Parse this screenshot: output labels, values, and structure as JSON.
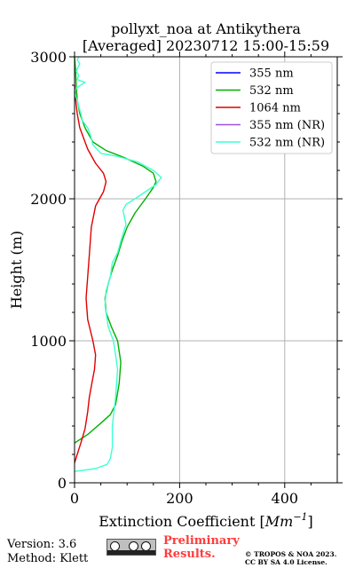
{
  "chart_data": {
    "type": "line",
    "title": "pollyxt_noa at Antikythera",
    "subtitle": "[Averaged] 20230712 15:00-15:59",
    "xlabel": "Extinction Coefficient [",
    "xlabel_unit_base": "Mm",
    "xlabel_unit_exp": "−1",
    "xlabel_close": "]",
    "ylabel": "Height (m)",
    "xlim": [
      0,
      500
    ],
    "ylim": [
      0,
      3000
    ],
    "x_ticks": [
      0,
      200,
      400
    ],
    "y_ticks": [
      0,
      1000,
      2000,
      3000
    ],
    "grid": true,
    "legend_position": "upper-right",
    "series": [
      {
        "name": "355 nm",
        "color": "#0000ff",
        "points": []
      },
      {
        "name": "532 nm",
        "color": "#00b000",
        "points": [
          [
            0,
            280
          ],
          [
            25,
            340
          ],
          [
            50,
            420
          ],
          [
            68,
            480
          ],
          [
            78,
            550
          ],
          [
            85,
            700
          ],
          [
            88,
            850
          ],
          [
            82,
            1000
          ],
          [
            70,
            1100
          ],
          [
            60,
            1200
          ],
          [
            58,
            1300
          ],
          [
            64,
            1400
          ],
          [
            72,
            1500
          ],
          [
            82,
            1600
          ],
          [
            90,
            1700
          ],
          [
            100,
            1800
          ],
          [
            115,
            1900
          ],
          [
            135,
            2000
          ],
          [
            150,
            2080
          ],
          [
            155,
            2120
          ],
          [
            150,
            2180
          ],
          [
            130,
            2230
          ],
          [
            95,
            2290
          ],
          [
            60,
            2340
          ],
          [
            35,
            2400
          ],
          [
            20,
            2500
          ],
          [
            10,
            2600
          ],
          [
            5,
            2700
          ],
          [
            3,
            2800
          ],
          [
            2,
            2900
          ],
          [
            0,
            3000
          ]
        ]
      },
      {
        "name": "1064 nm",
        "color": "#e00000",
        "points": [
          [
            0,
            140
          ],
          [
            5,
            200
          ],
          [
            12,
            280
          ],
          [
            20,
            380
          ],
          [
            25,
            500
          ],
          [
            28,
            600
          ],
          [
            33,
            700
          ],
          [
            38,
            800
          ],
          [
            40,
            900
          ],
          [
            35,
            1000
          ],
          [
            25,
            1150
          ],
          [
            22,
            1300
          ],
          [
            25,
            1450
          ],
          [
            28,
            1600
          ],
          [
            32,
            1800
          ],
          [
            40,
            1950
          ],
          [
            55,
            2050
          ],
          [
            60,
            2120
          ],
          [
            55,
            2180
          ],
          [
            40,
            2250
          ],
          [
            25,
            2350
          ],
          [
            10,
            2500
          ],
          [
            5,
            2600
          ],
          [
            2,
            2700
          ],
          [
            0,
            2800
          ]
        ]
      },
      {
        "name": "355 nm (NR)",
        "color": "#a050e0",
        "points": []
      },
      {
        "name": "532 nm (NR)",
        "color": "#40ffd0",
        "points": [
          [
            0,
            80
          ],
          [
            40,
            100
          ],
          [
            62,
            130
          ],
          [
            68,
            170
          ],
          [
            72,
            250
          ],
          [
            72,
            400
          ],
          [
            75,
            500
          ],
          [
            78,
            600
          ],
          [
            80,
            700
          ],
          [
            82,
            800
          ],
          [
            78,
            900
          ],
          [
            74,
            1000
          ],
          [
            64,
            1100
          ],
          [
            58,
            1250
          ],
          [
            60,
            1350
          ],
          [
            68,
            1450
          ],
          [
            72,
            1550
          ],
          [
            82,
            1620
          ],
          [
            88,
            1700
          ],
          [
            92,
            1750
          ],
          [
            98,
            1820
          ],
          [
            92,
            1920
          ],
          [
            98,
            1960
          ],
          [
            115,
            2000
          ],
          [
            135,
            2050
          ],
          [
            155,
            2100
          ],
          [
            165,
            2150
          ],
          [
            150,
            2200
          ],
          [
            120,
            2260
          ],
          [
            80,
            2300
          ],
          [
            50,
            2320
          ],
          [
            35,
            2380
          ],
          [
            30,
            2450
          ],
          [
            25,
            2500
          ],
          [
            15,
            2550
          ],
          [
            12,
            2600
          ],
          [
            8,
            2650
          ],
          [
            5,
            2700
          ],
          [
            2,
            2720
          ],
          [
            0,
            2750
          ],
          [
            3,
            2780
          ],
          [
            20,
            2820
          ],
          [
            5,
            2840
          ],
          [
            8,
            2870
          ],
          [
            3,
            2900
          ],
          [
            10,
            2950
          ],
          [
            5,
            2980
          ],
          [
            8,
            3000
          ]
        ]
      }
    ]
  },
  "footer": {
    "version": "Version: 3.6",
    "method": "Method: Klett",
    "preliminary_line1": "Preliminary",
    "preliminary_line2": "Results.",
    "copyright_line1": "© TROPOS & NOA 2023.",
    "copyright_line2": "CC BY SA 4.0 License.",
    "license_badge_icon": "cc-by-sa-icon",
    "preliminary_color": "#ff3b3b"
  }
}
